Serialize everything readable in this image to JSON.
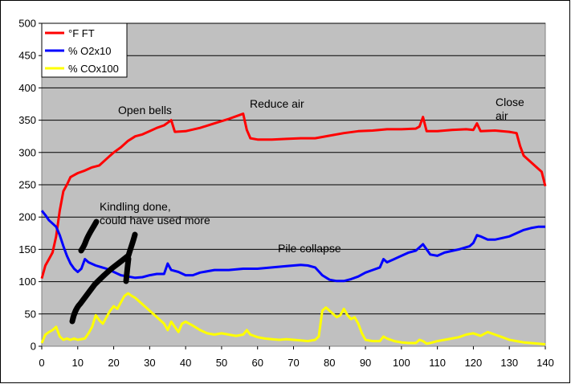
{
  "chart_data": {
    "type": "line",
    "title": "",
    "xlabel": "",
    "ylabel": "",
    "xlim": [
      0,
      140
    ],
    "ylim": [
      0,
      500
    ],
    "x_ticks": [
      "0",
      "10",
      "20",
      "30",
      "40",
      "50",
      "60",
      "70",
      "80",
      "90",
      "100",
      "110",
      "120",
      "130",
      "140"
    ],
    "y_ticks": [
      "0",
      "50",
      "100",
      "150",
      "200",
      "250",
      "300",
      "350",
      "400",
      "450",
      "500"
    ],
    "grid": "horizontal",
    "plot_background": "#c0c0c0",
    "legend_position": "top-left",
    "series": [
      {
        "name": "°F FT",
        "color": "#ff0000",
        "points": [
          [
            0,
            105
          ],
          [
            1,
            125
          ],
          [
            2,
            135
          ],
          [
            3,
            145
          ],
          [
            4,
            170
          ],
          [
            5,
            210
          ],
          [
            6,
            240
          ],
          [
            7,
            250
          ],
          [
            8,
            262
          ],
          [
            9,
            265
          ],
          [
            10,
            268
          ],
          [
            12,
            272
          ],
          [
            14,
            277
          ],
          [
            16,
            280
          ],
          [
            18,
            290
          ],
          [
            20,
            300
          ],
          [
            22,
            308
          ],
          [
            24,
            318
          ],
          [
            26,
            325
          ],
          [
            28,
            328
          ],
          [
            30,
            333
          ],
          [
            32,
            338
          ],
          [
            34,
            342
          ],
          [
            35,
            346
          ],
          [
            36,
            350
          ],
          [
            37,
            332
          ],
          [
            40,
            333
          ],
          [
            44,
            338
          ],
          [
            48,
            345
          ],
          [
            52,
            352
          ],
          [
            55,
            358
          ],
          [
            56,
            360
          ],
          [
            57,
            335
          ],
          [
            58,
            322
          ],
          [
            60,
            320
          ],
          [
            64,
            320
          ],
          [
            68,
            321
          ],
          [
            72,
            322
          ],
          [
            76,
            322
          ],
          [
            80,
            326
          ],
          [
            84,
            330
          ],
          [
            88,
            333
          ],
          [
            92,
            334
          ],
          [
            96,
            336
          ],
          [
            100,
            336
          ],
          [
            104,
            337
          ],
          [
            105,
            340
          ],
          [
            106,
            355
          ],
          [
            107,
            333
          ],
          [
            110,
            333
          ],
          [
            114,
            335
          ],
          [
            118,
            336
          ],
          [
            120,
            335
          ],
          [
            121,
            345
          ],
          [
            122,
            333
          ],
          [
            126,
            334
          ],
          [
            130,
            332
          ],
          [
            132,
            330
          ],
          [
            133,
            310
          ],
          [
            134,
            295
          ],
          [
            136,
            285
          ],
          [
            138,
            275
          ],
          [
            139,
            270
          ],
          [
            140,
            248
          ]
        ]
      },
      {
        "name": "% O2x10",
        "color": "#0000ff",
        "points": [
          [
            0,
            210
          ],
          [
            1,
            203
          ],
          [
            2,
            195
          ],
          [
            3,
            190
          ],
          [
            4,
            185
          ],
          [
            5,
            172
          ],
          [
            6,
            155
          ],
          [
            7,
            140
          ],
          [
            8,
            128
          ],
          [
            9,
            120
          ],
          [
            10,
            115
          ],
          [
            11,
            120
          ],
          [
            12,
            135
          ],
          [
            13,
            130
          ],
          [
            15,
            125
          ],
          [
            18,
            120
          ],
          [
            20,
            115
          ],
          [
            22,
            110
          ],
          [
            24,
            108
          ],
          [
            26,
            106
          ],
          [
            28,
            107
          ],
          [
            30,
            110
          ],
          [
            32,
            112
          ],
          [
            34,
            112
          ],
          [
            35,
            128
          ],
          [
            36,
            118
          ],
          [
            38,
            115
          ],
          [
            40,
            110
          ],
          [
            42,
            110
          ],
          [
            44,
            114
          ],
          [
            48,
            118
          ],
          [
            52,
            118
          ],
          [
            56,
            120
          ],
          [
            60,
            120
          ],
          [
            64,
            122
          ],
          [
            68,
            124
          ],
          [
            72,
            126
          ],
          [
            74,
            125
          ],
          [
            76,
            122
          ],
          [
            78,
            110
          ],
          [
            80,
            103
          ],
          [
            82,
            101
          ],
          [
            84,
            101
          ],
          [
            86,
            104
          ],
          [
            88,
            108
          ],
          [
            90,
            114
          ],
          [
            92,
            118
          ],
          [
            94,
            122
          ],
          [
            95,
            135
          ],
          [
            96,
            130
          ],
          [
            98,
            135
          ],
          [
            100,
            140
          ],
          [
            102,
            145
          ],
          [
            104,
            148
          ],
          [
            106,
            158
          ],
          [
            107,
            150
          ],
          [
            108,
            142
          ],
          [
            110,
            140
          ],
          [
            112,
            145
          ],
          [
            116,
            150
          ],
          [
            119,
            155
          ],
          [
            120,
            160
          ],
          [
            121,
            172
          ],
          [
            122,
            170
          ],
          [
            124,
            165
          ],
          [
            126,
            165
          ],
          [
            130,
            170
          ],
          [
            132,
            175
          ],
          [
            134,
            180
          ],
          [
            136,
            183
          ],
          [
            138,
            185
          ],
          [
            140,
            185
          ]
        ]
      },
      {
        "name": "% COx100",
        "color": "#ffff00",
        "points": [
          [
            0,
            5
          ],
          [
            1,
            18
          ],
          [
            2,
            22
          ],
          [
            3,
            25
          ],
          [
            4,
            30
          ],
          [
            5,
            15
          ],
          [
            6,
            10
          ],
          [
            7,
            12
          ],
          [
            8,
            10
          ],
          [
            9,
            12
          ],
          [
            10,
            10
          ],
          [
            12,
            12
          ],
          [
            13,
            20
          ],
          [
            14,
            30
          ],
          [
            15,
            48
          ],
          [
            16,
            40
          ],
          [
            17,
            35
          ],
          [
            18,
            45
          ],
          [
            19,
            55
          ],
          [
            20,
            62
          ],
          [
            21,
            58
          ],
          [
            22,
            68
          ],
          [
            23,
            78
          ],
          [
            24,
            82
          ],
          [
            25,
            78
          ],
          [
            26,
            75
          ],
          [
            28,
            65
          ],
          [
            30,
            55
          ],
          [
            32,
            45
          ],
          [
            34,
            35
          ],
          [
            35,
            25
          ],
          [
            36,
            38
          ],
          [
            37,
            30
          ],
          [
            38,
            22
          ],
          [
            39,
            35
          ],
          [
            40,
            38
          ],
          [
            42,
            32
          ],
          [
            44,
            25
          ],
          [
            46,
            20
          ],
          [
            48,
            18
          ],
          [
            50,
            20
          ],
          [
            52,
            18
          ],
          [
            54,
            16
          ],
          [
            56,
            18
          ],
          [
            57,
            25
          ],
          [
            58,
            18
          ],
          [
            60,
            14
          ],
          [
            62,
            12
          ],
          [
            64,
            11
          ],
          [
            66,
            10
          ],
          [
            68,
            11
          ],
          [
            70,
            10
          ],
          [
            72,
            9
          ],
          [
            74,
            8
          ],
          [
            76,
            10
          ],
          [
            77,
            15
          ],
          [
            78,
            55
          ],
          [
            79,
            60
          ],
          [
            80,
            55
          ],
          [
            81,
            50
          ],
          [
            82,
            45
          ],
          [
            83,
            48
          ],
          [
            84,
            58
          ],
          [
            85,
            48
          ],
          [
            86,
            42
          ],
          [
            87,
            45
          ],
          [
            88,
            35
          ],
          [
            89,
            20
          ],
          [
            90,
            10
          ],
          [
            92,
            8
          ],
          [
            94,
            8
          ],
          [
            95,
            15
          ],
          [
            96,
            12
          ],
          [
            98,
            8
          ],
          [
            100,
            6
          ],
          [
            102,
            5
          ],
          [
            104,
            5
          ],
          [
            105,
            10
          ],
          [
            106,
            8
          ],
          [
            107,
            4
          ],
          [
            108,
            5
          ],
          [
            110,
            8
          ],
          [
            112,
            10
          ],
          [
            114,
            12
          ],
          [
            116,
            14
          ],
          [
            118,
            18
          ],
          [
            120,
            20
          ],
          [
            122,
            16
          ],
          [
            124,
            22
          ],
          [
            126,
            18
          ],
          [
            128,
            14
          ],
          [
            130,
            10
          ],
          [
            132,
            8
          ],
          [
            134,
            6
          ],
          [
            136,
            5
          ],
          [
            138,
            4
          ],
          [
            140,
            3
          ]
        ]
      }
    ],
    "annotations": [
      "Open bells",
      "Reduce air",
      "Close air",
      "Kindling done, could have used more",
      "Pile collapse"
    ]
  },
  "labels": {
    "open_bells": "Open bells",
    "reduce_air": "Reduce air",
    "close_air_1": "Close",
    "close_air_2": "air",
    "kindling_1": "Kindling done,",
    "kindling_2": "could have used more",
    "pile_collapse": "Pile collapse"
  }
}
